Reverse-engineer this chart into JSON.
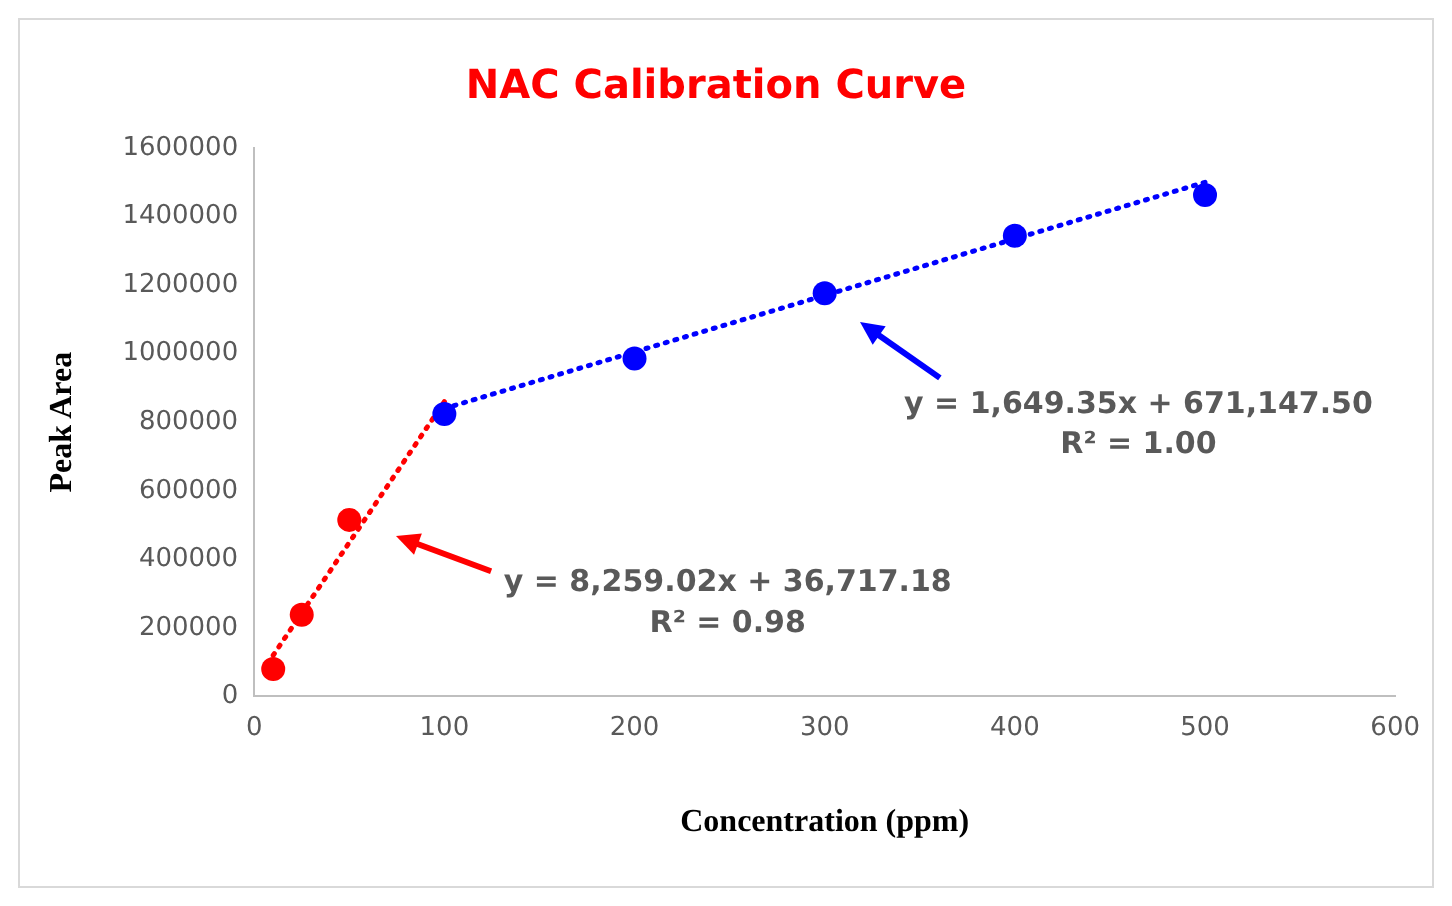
{
  "chart_data": {
    "type": "scatter",
    "title": "NAC Calibration Curve",
    "xlabel": "Concentration (ppm)",
    "ylabel": "Peak Area",
    "xlim": [
      0,
      600
    ],
    "xticks": [
      0,
      100,
      200,
      300,
      400,
      500,
      600
    ],
    "ylim": [
      0,
      1600000
    ],
    "yticks": [
      0,
      200000,
      400000,
      600000,
      800000,
      1000000,
      1200000,
      1400000,
      1600000
    ],
    "grid": false,
    "legend": false,
    "marker": "circle",
    "series": [
      {
        "type": "scatter",
        "color": "#ff0000",
        "x": [
          10,
          25,
          50
        ],
        "values": [
          80000,
          238000,
          515000
        ]
      },
      {
        "type": "scatter",
        "color": "#0000ff",
        "x": [
          100,
          200,
          300,
          400,
          500
        ],
        "values": [
          824000,
          986000,
          1176000,
          1344000,
          1463000
        ]
      },
      {
        "type": "line",
        "color": "#ff0000",
        "line_style": "dotted",
        "marker": "none",
        "x": [
          10,
          100
        ],
        "values": [
          120000,
          860000
        ]
      },
      {
        "type": "line",
        "color": "#0000ff",
        "line_style": "dotted",
        "marker": "none",
        "x": [
          100,
          500
        ],
        "values": [
          840000,
          1500000
        ]
      }
    ],
    "annotations": [
      "y = 8,259.02x + 36,717.18",
      "R² = 0.98",
      "y = 1,649.35x + 671,147.50",
      "R² = 1.00"
    ]
  }
}
